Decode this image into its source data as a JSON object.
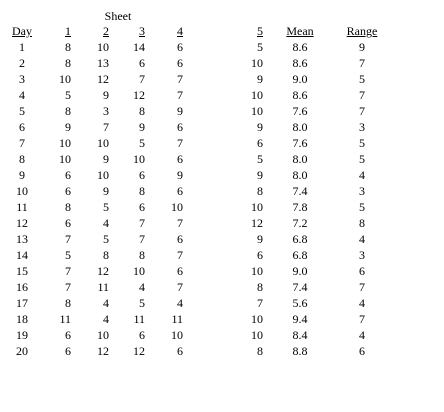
{
  "header_group": "Sheet",
  "columns": [
    "Day",
    "1",
    "2",
    "3",
    "4",
    "5",
    "Mean",
    "Range"
  ],
  "rows": [
    [
      "1",
      "8",
      "10",
      "14",
      "6",
      "5",
      "8.6",
      "9"
    ],
    [
      "2",
      "8",
      "13",
      "6",
      "6",
      "10",
      "8.6",
      "7"
    ],
    [
      "3",
      "10",
      "12",
      "7",
      "7",
      "9",
      "9.0",
      "5"
    ],
    [
      "4",
      "5",
      "9",
      "12",
      "7",
      "10",
      "8.6",
      "7"
    ],
    [
      "5",
      "8",
      "3",
      "8",
      "9",
      "10",
      "7.6",
      "7"
    ],
    [
      "6",
      "9",
      "7",
      "9",
      "6",
      "9",
      "8.0",
      "3"
    ],
    [
      "7",
      "10",
      "10",
      "5",
      "7",
      "6",
      "7.6",
      "5"
    ],
    [
      "8",
      "10",
      "9",
      "10",
      "6",
      "5",
      "8.0",
      "5"
    ],
    [
      "9",
      "6",
      "10",
      "6",
      "9",
      "9",
      "8.0",
      "4"
    ],
    [
      "10",
      "6",
      "9",
      "8",
      "6",
      "8",
      "7.4",
      "3"
    ],
    [
      "11",
      "8",
      "5",
      "6",
      "10",
      "10",
      "7.8",
      "5"
    ],
    [
      "12",
      "6",
      "4",
      "7",
      "7",
      "12",
      "7.2",
      "8"
    ],
    [
      "13",
      "7",
      "5",
      "7",
      "6",
      "9",
      "6.8",
      "4"
    ],
    [
      "14",
      "5",
      "8",
      "8",
      "7",
      "6",
      "6.8",
      "3"
    ],
    [
      "15",
      "7",
      "12",
      "10",
      "6",
      "10",
      "9.0",
      "6"
    ],
    [
      "16",
      "7",
      "11",
      "4",
      "7",
      "8",
      "7.4",
      "7"
    ],
    [
      "17",
      "8",
      "4",
      "5",
      "4",
      "7",
      "5.6",
      "4"
    ],
    [
      "18",
      "11",
      "4",
      "11",
      "11",
      "10",
      "9.4",
      "7"
    ],
    [
      "19",
      "6",
      "10",
      "6",
      "10",
      "10",
      "8.4",
      "4"
    ],
    [
      "20",
      "6",
      "12",
      "12",
      "6",
      "8",
      "8.8",
      "6"
    ]
  ]
}
